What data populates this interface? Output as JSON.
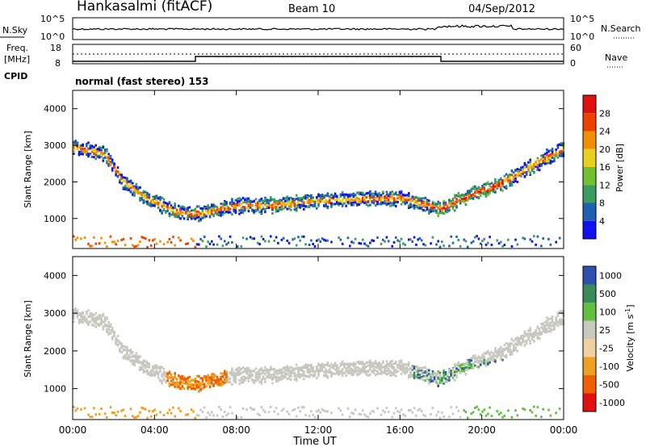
{
  "header": {
    "station": "Hankasalmi (fitACF)",
    "beam": "Beam 10",
    "date": "04/Sep/2012"
  },
  "noise_panel": {
    "left_label": "N.Sky",
    "right_label": "N.Search",
    "left_ticks": [
      "10^5",
      "10^0"
    ],
    "right_ticks": [
      "10^5",
      "10^0"
    ]
  },
  "freq_panel": {
    "left_label_1": "Freq.",
    "left_label_2": "[MHz]",
    "left_ticks": [
      "18",
      "8"
    ],
    "right_label": "Nave",
    "right_ticks": [
      "60",
      "0"
    ]
  },
  "cpid": {
    "label": "CPID",
    "text": "normal (fast stereo) 153"
  },
  "chart_data": [
    {
      "type": "heatmap",
      "name": "power",
      "ylabel": "Slant Range [km]",
      "ylim": [
        180,
        4500
      ],
      "yticks": [
        "1000",
        "2000",
        "3000",
        "4000"
      ],
      "xlim": [
        "00:00",
        "24:00"
      ],
      "colorbar_label": "Power [dB]",
      "colorbar_ticks": [
        "4",
        "8",
        "12",
        "16",
        "20",
        "24",
        "28"
      ],
      "colors": [
        "#1010f0",
        "#2060b0",
        "#3a9c60",
        "#70c030",
        "#e8d020",
        "#f09000",
        "#f04000",
        "#e01010"
      ],
      "trace": [
        {
          "t": 0.0,
          "r": 2980
        },
        {
          "t": 1.5,
          "r": 2800
        },
        {
          "t": 2.5,
          "r": 2000
        },
        {
          "t": 3.5,
          "r": 1600
        },
        {
          "t": 5.0,
          "r": 1220
        },
        {
          "t": 6.0,
          "r": 1150
        },
        {
          "t": 8.0,
          "r": 1380
        },
        {
          "t": 10.0,
          "r": 1400
        },
        {
          "t": 12.0,
          "r": 1520
        },
        {
          "t": 14.0,
          "r": 1560
        },
        {
          "t": 16.0,
          "r": 1580
        },
        {
          "t": 18.0,
          "r": 1300
        },
        {
          "t": 19.5,
          "r": 1700
        },
        {
          "t": 21.0,
          "r": 2000
        },
        {
          "t": 22.5,
          "r": 2500
        },
        {
          "t": 24.0,
          "r": 2950
        }
      ]
    },
    {
      "type": "heatmap",
      "name": "velocity",
      "ylabel": "Slant Range [km]",
      "ylim": [
        180,
        4500
      ],
      "yticks": [
        "1000",
        "2000",
        "3000",
        "4000"
      ],
      "xlim": [
        "00:00",
        "24:00"
      ],
      "xticks": [
        "00:00",
        "04:00",
        "08:00",
        "12:00",
        "16:00",
        "20:00",
        "00:00"
      ],
      "xlabel": "Time UT",
      "colorbar_label": "Velocity [m s^-1]",
      "colorbar_ticks": [
        "1000",
        "500",
        "100",
        "25",
        "-25",
        "-100",
        "-500",
        "-1000"
      ],
      "colors": [
        "#3050b0",
        "#3a8a5a",
        "#60c040",
        "#c8c8c0",
        "#f0d0a0",
        "#f0a020",
        "#f06000",
        "#e01010"
      ]
    }
  ],
  "colors": {
    "scatter_grey": "#c8c8c0",
    "noise_line": "#000000"
  }
}
